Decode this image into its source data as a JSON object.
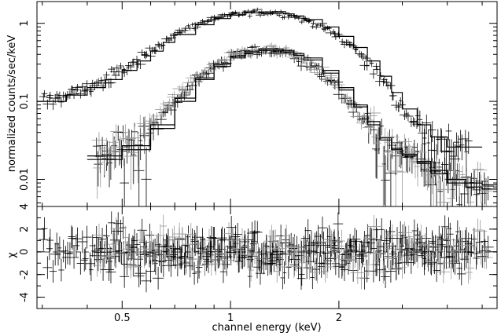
{
  "chart_data": {
    "type": "scatter",
    "panels": {
      "spectrum": {
        "ylabel": "normalized counts/sec/keV",
        "yscale": "log",
        "ylim": [
          0.0045,
          1.9
        ],
        "y_ticks": [
          {
            "value": 0.01,
            "label": "0.01"
          },
          {
            "value": 0.1,
            "label": "0.1"
          },
          {
            "value": 1,
            "label": "1"
          }
        ]
      },
      "residuals": {
        "ylabel": "χ",
        "ylim": [
          -5,
          4
        ],
        "y_ticks": [
          {
            "value": -4,
            "label": "-4"
          },
          {
            "value": -2,
            "label": "-2"
          },
          {
            "value": 0,
            "label": "0"
          },
          {
            "value": 2,
            "label": "2"
          },
          {
            "value": 4,
            "label": "4"
          }
        ]
      }
    },
    "xlabel": "channel energy (keV)",
    "xscale": "log",
    "xlim": [
      0.29,
      5.5
    ],
    "x_ticks": [
      {
        "value": 0.5,
        "label": "0.5"
      },
      {
        "value": 1,
        "label": "1"
      },
      {
        "value": 2,
        "label": "2"
      }
    ],
    "series": [
      {
        "color": "#000000",
        "model_x": [
          0.29,
          0.35,
          0.4,
          0.45,
          0.5,
          0.55,
          0.6,
          0.65,
          0.7,
          0.8,
          0.9,
          1.0,
          1.1,
          1.2,
          1.3,
          1.4,
          1.5,
          1.6,
          1.8,
          2.0,
          2.2,
          2.4,
          2.6,
          2.8,
          3.0,
          3.3,
          3.6,
          4.0,
          4.5,
          5.0
        ],
        "model_y": [
          0.1,
          0.12,
          0.15,
          0.19,
          0.25,
          0.33,
          0.44,
          0.57,
          0.72,
          0.96,
          1.15,
          1.28,
          1.36,
          1.4,
          1.38,
          1.32,
          1.24,
          1.12,
          0.9,
          0.68,
          0.49,
          0.33,
          0.21,
          0.13,
          0.08,
          0.05,
          0.035,
          0.026,
          0.026,
          0.025
        ]
      },
      {
        "color": "#000000",
        "model_x": [
          0.4,
          0.5,
          0.6,
          0.7,
          0.8,
          0.9,
          1.0,
          1.1,
          1.2,
          1.3,
          1.4,
          1.5,
          1.6,
          1.8,
          2.0,
          2.2,
          2.4,
          2.6,
          2.8,
          3.0,
          3.3,
          3.6,
          4.0,
          4.5,
          5.0,
          5.5
        ],
        "model_y": [
          0.018,
          0.024,
          0.045,
          0.1,
          0.19,
          0.28,
          0.36,
          0.42,
          0.45,
          0.45,
          0.43,
          0.39,
          0.34,
          0.23,
          0.14,
          0.085,
          0.05,
          0.032,
          0.024,
          0.02,
          0.016,
          0.012,
          0.009,
          0.008,
          0.0075,
          0.007
        ]
      },
      {
        "color": "#999999",
        "model_x": [
          0.4,
          0.5,
          0.6,
          0.7,
          0.8,
          0.9,
          1.0,
          1.1,
          1.2,
          1.3,
          1.4,
          1.5,
          1.6,
          1.8,
          2.0,
          2.2,
          2.4,
          2.6,
          2.8,
          3.0,
          3.3,
          3.6,
          4.0,
          4.5,
          5.0,
          5.5
        ],
        "model_y": [
          0.02,
          0.027,
          0.05,
          0.11,
          0.2,
          0.3,
          0.38,
          0.44,
          0.47,
          0.47,
          0.45,
          0.41,
          0.36,
          0.25,
          0.15,
          0.09,
          0.055,
          0.034,
          0.025,
          0.021,
          0.017,
          0.013,
          0.01,
          0.009,
          0.0085,
          0.008
        ]
      }
    ],
    "grid": false,
    "legend": "none"
  }
}
